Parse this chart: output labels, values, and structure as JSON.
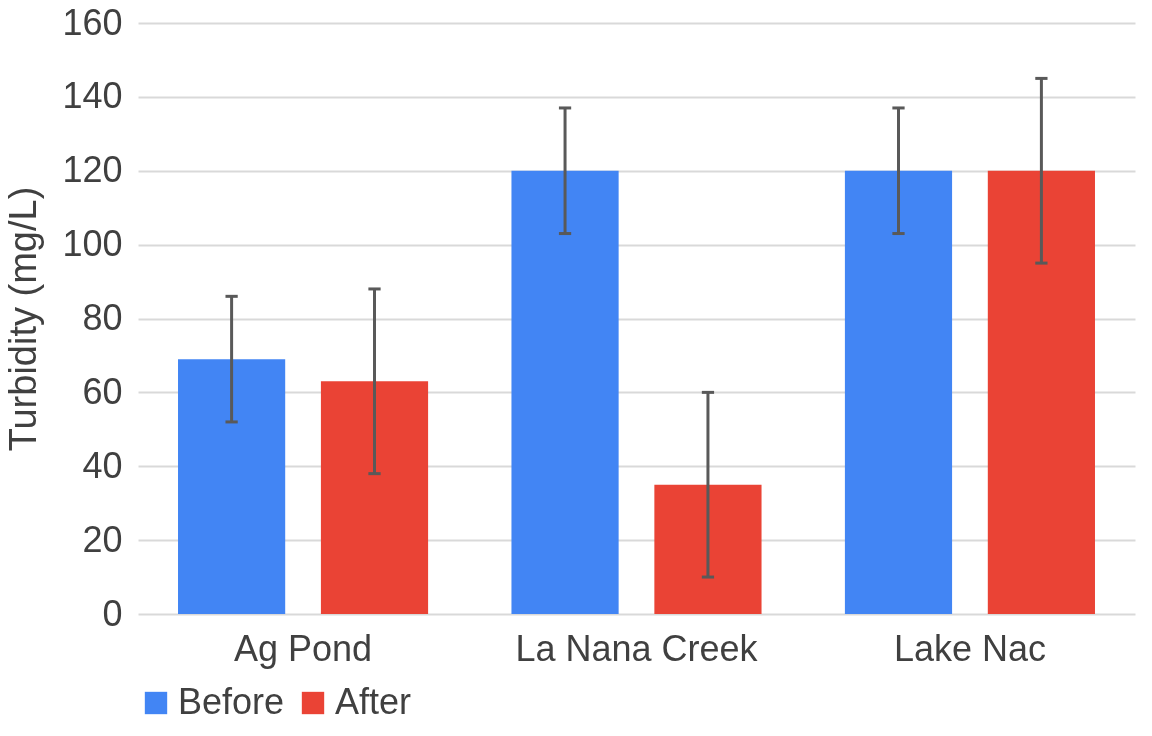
{
  "chart_data": {
    "type": "bar",
    "ylabel": "Turbidity (mg/L)",
    "categories": [
      "Ag Pond",
      "La Nana Creek",
      "Lake Nac"
    ],
    "series": [
      {
        "name": "Before",
        "color": "#4285f4",
        "values": [
          69,
          120,
          120
        ],
        "errors": [
          17,
          17,
          17
        ]
      },
      {
        "name": "After",
        "color": "#ea4335",
        "values": [
          63,
          35,
          120
        ],
        "errors": [
          25,
          25,
          25
        ]
      }
    ],
    "ylim": [
      0,
      160
    ],
    "yticks": [
      0,
      20,
      40,
      60,
      80,
      100,
      120,
      140,
      160
    ],
    "grid": "y",
    "legend": "bottom"
  }
}
